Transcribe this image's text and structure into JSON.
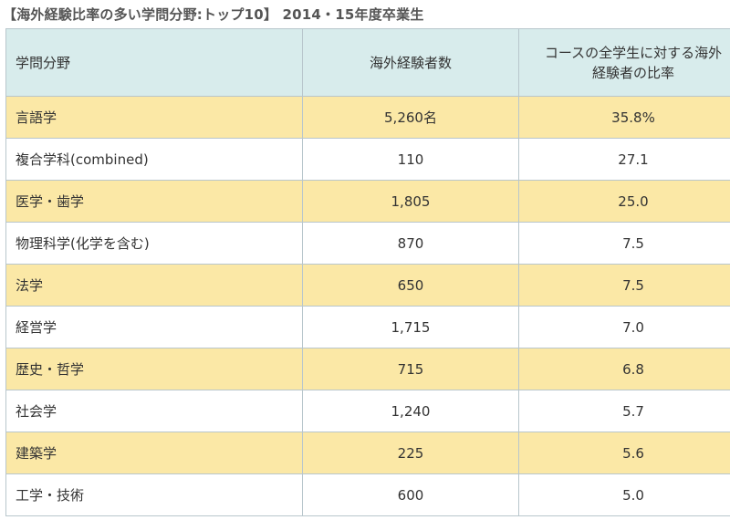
{
  "title": "【海外経験比率の多い学問分野:トップ10】 2014・15年度卒業生",
  "table": {
    "headers": {
      "field": "学問分野",
      "count": "海外経験者数",
      "ratio_line1": "コースの全学生に対する海外",
      "ratio_line2": "経験者の比率"
    },
    "rows": [
      {
        "field": "言語学",
        "count": "5,260名",
        "ratio": "35.8%"
      },
      {
        "field": "複合学科(combined)",
        "count": "110",
        "ratio": "27.1"
      },
      {
        "field": "医学・歯学",
        "count": "1,805",
        "ratio": "25.0"
      },
      {
        "field": "物理科学(化学を含む)",
        "count": "870",
        "ratio": "7.5"
      },
      {
        "field": "法学",
        "count": "650",
        "ratio": "7.5"
      },
      {
        "field": "経営学",
        "count": "1,715",
        "ratio": "7.0"
      },
      {
        "field": "歴史・哲学",
        "count": "715",
        "ratio": "6.8"
      },
      {
        "field": "社会学",
        "count": "1,240",
        "ratio": "5.7"
      },
      {
        "field": "建築学",
        "count": "225",
        "ratio": "5.6"
      },
      {
        "field": "工学・技術",
        "count": "600",
        "ratio": "5.0"
      }
    ]
  },
  "colors": {
    "header_bg": "#d8ecec",
    "highlight_row_bg": "#fbe8a6",
    "plain_row_bg": "#ffffff",
    "border": "#b8c6cc"
  }
}
